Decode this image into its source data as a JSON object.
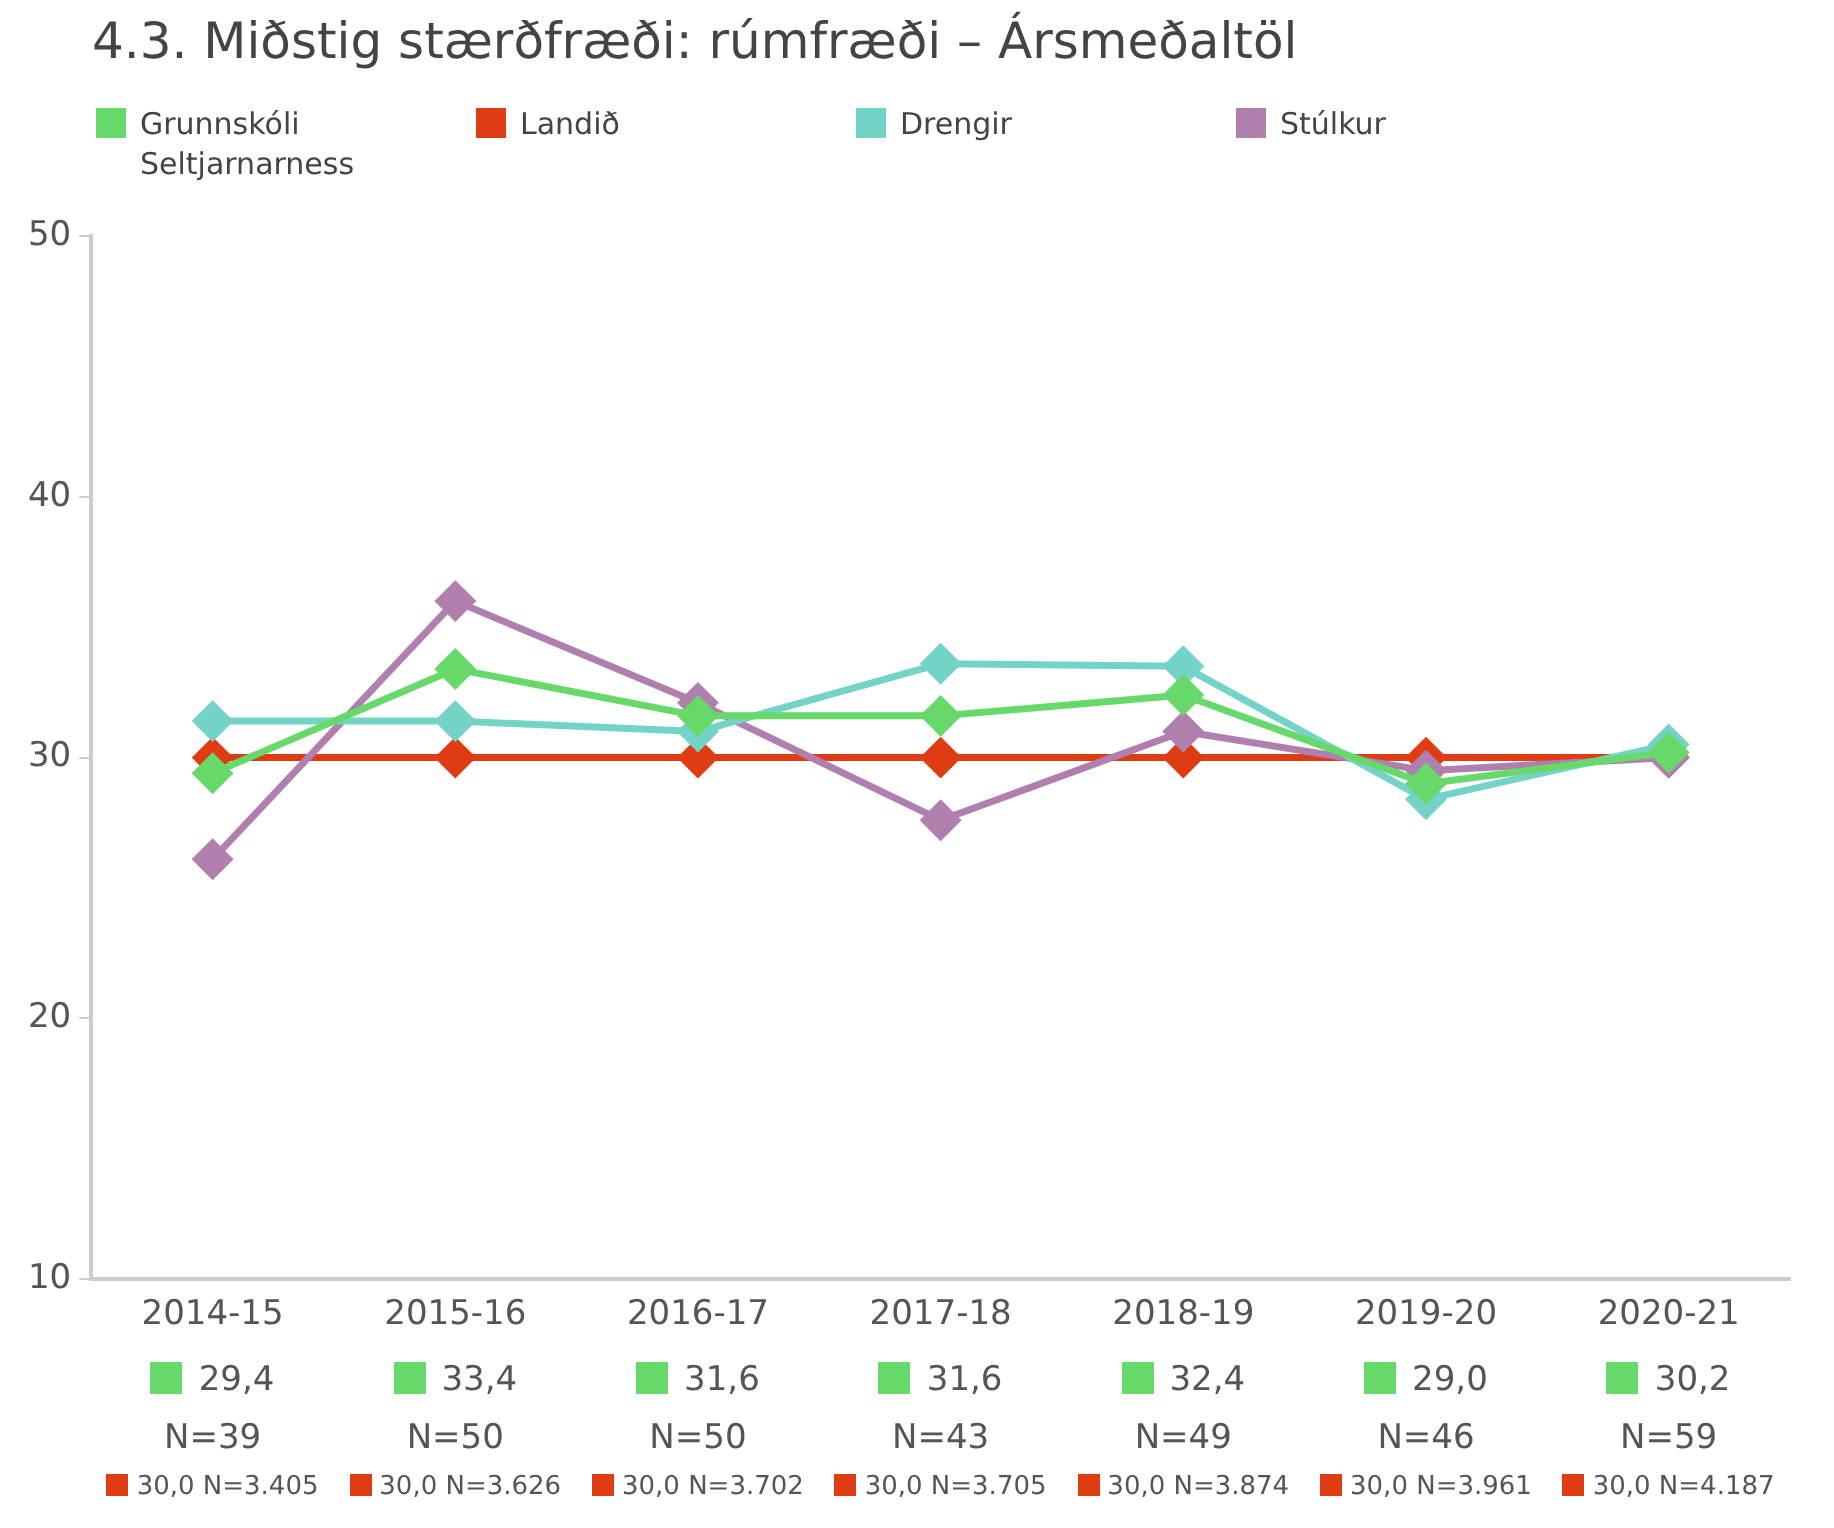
{
  "chart_data": {
    "type": "line",
    "title": "4.3. Miðstig stærðfræði: rúmfræði – Ársmeðaltöl",
    "categories": [
      "2014-15",
      "2015-16",
      "2016-17",
      "2017-18",
      "2018-19",
      "2019-20",
      "2020-21"
    ],
    "series": [
      {
        "name": "Grunnskóli Seltjarnarness",
        "color": "#66d96a",
        "values": [
          29.4,
          33.4,
          31.6,
          31.6,
          32.4,
          29.0,
          30.2
        ],
        "value_labels": [
          "29,4 N=39",
          "33,4 N=50",
          "31,6 N=50",
          "31,6 N=43",
          "32,4 N=49",
          "29,0 N=46",
          "30,2 N=59"
        ]
      },
      {
        "name": "Landið",
        "color": "#e03c14",
        "values": [
          30.0,
          30.0,
          30.0,
          30.0,
          30.0,
          30.0,
          30.0
        ],
        "value_labels": [
          "30,0 N=3.405",
          "30,0 N=3.626",
          "30,0 N=3.702",
          "30,0 N=3.705",
          "30,0 N=3.874",
          "30,0 N=3.961",
          "30,0 N=4.187"
        ]
      },
      {
        "name": "Drengir",
        "color": "#72d3c6",
        "values": [
          31.4,
          31.4,
          31.0,
          33.6,
          33.5,
          28.4,
          30.5
        ]
      },
      {
        "name": "Stúlkur",
        "color": "#b07fad",
        "values": [
          26.1,
          36.0,
          32.1,
          27.6,
          31.0,
          29.5,
          30.0
        ]
      }
    ],
    "ylim": [
      10,
      50
    ],
    "yticks": [
      10,
      20,
      30,
      40,
      50
    ],
    "grid": false,
    "legend": "top left",
    "marker": "diamond",
    "line_style": "solid"
  }
}
